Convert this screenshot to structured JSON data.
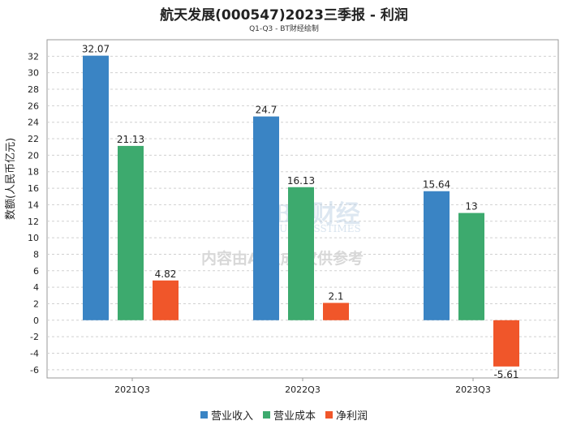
{
  "chart_data": {
    "type": "bar",
    "title": "航天发展(000547)2023三季报 - 利润",
    "subtitle": "Q1-Q3 - BT财经绘制",
    "xlabel": "",
    "ylabel": "数额(人民币亿元)",
    "categories": [
      "2021Q3",
      "2022Q3",
      "2023Q3"
    ],
    "series": [
      {
        "name": "营业收入",
        "values": [
          32.07,
          24.7,
          15.64
        ],
        "color": "#3a84c4"
      },
      {
        "name": "营业成本",
        "values": [
          21.13,
          16.13,
          13
        ],
        "color": "#3daa6e"
      },
      {
        "name": "净利润",
        "values": [
          4.82,
          2.1,
          -5.61
        ],
        "color": "#f0562a"
      }
    ],
    "ylim": [
      -7,
      34
    ],
    "yticks": [
      -6,
      -4,
      -2,
      0,
      2,
      4,
      6,
      8,
      10,
      12,
      14,
      16,
      18,
      20,
      22,
      24,
      26,
      28,
      30,
      32
    ],
    "grid": true,
    "legend_position": "bottom"
  },
  "watermark": {
    "brand": "BT财经",
    "brand_en": "BUSINESSTIMES",
    "notice": "内容由AI生成,仅供参考"
  }
}
